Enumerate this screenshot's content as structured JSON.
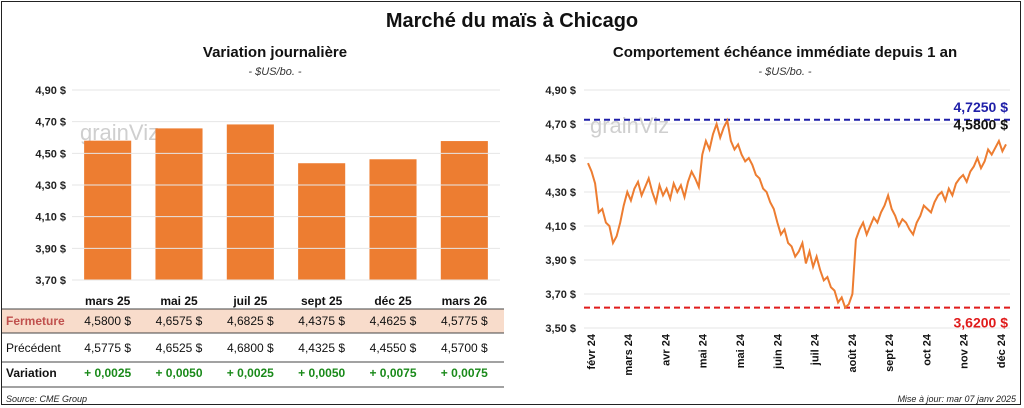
{
  "title": "Marché du maïs à Chicago",
  "watermark": "grainViz",
  "source": "Source: CME Group",
  "updated": "Mise à jour: mar 07 janv 2025",
  "colors": {
    "bar": "#ED7D31",
    "line": "#ED7D31",
    "high": "#1F1FA8",
    "low": "#E01B1B",
    "positive": "#1A8A1A",
    "row_highlight": "#F8DCCB",
    "label": "#C0504D"
  },
  "chart_data": [
    {
      "type": "bar",
      "title": "Variation journalière",
      "subtitle": "- $US/bo. -",
      "categories": [
        "mars 25",
        "mai 25",
        "juil 25",
        "sept 25",
        "déc 25",
        "mars 26"
      ],
      "values": [
        4.58,
        4.6575,
        4.6825,
        4.4375,
        4.4625,
        4.5775
      ],
      "ylim": [
        3.7,
        4.9
      ],
      "yticks": [
        "3,70 $",
        "3,90 $",
        "4,10 $",
        "4,30 $",
        "4,50 $",
        "4,70 $",
        "4,90 $"
      ],
      "grid": true,
      "table": {
        "rows": [
          {
            "label": "Fermeture",
            "values": [
              "4,5800 $",
              "4,6575 $",
              "4,6825 $",
              "4,4375 $",
              "4,4625 $",
              "4,5775 $"
            ]
          },
          {
            "label": "Précédent",
            "values": [
              "4,5775 $",
              "4,6525 $",
              "4,6800 $",
              "4,4325 $",
              "4,4550 $",
              "4,5700 $"
            ]
          },
          {
            "label": "Variation",
            "values": [
              "+ 0,0025",
              "+ 0,0050",
              "+ 0,0025",
              "+ 0,0050",
              "+ 0,0075",
              "+ 0,0075"
            ]
          }
        ]
      }
    },
    {
      "type": "line",
      "title": "Comportement échéance immédiate depuis 1 an",
      "subtitle": "- $US/bo. -",
      "xlabels": [
        "févr 24",
        "mars 24",
        "avr 24",
        "mai 24",
        "mai 24",
        "juin 24",
        "juil 24",
        "août 24",
        "sept 24",
        "oct 24",
        "nov 24",
        "déc 24"
      ],
      "ylim": [
        3.5,
        4.9
      ],
      "yticks": [
        "3,50 $",
        "3,70 $",
        "3,90 $",
        "4,10 $",
        "4,30 $",
        "4,50 $",
        "4,70 $",
        "4,90 $"
      ],
      "grid": true,
      "values": [
        4.47,
        4.42,
        4.35,
        4.18,
        4.2,
        4.12,
        4.1,
        4.0,
        4.04,
        4.12,
        4.22,
        4.3,
        4.25,
        4.32,
        4.36,
        4.28,
        4.33,
        4.38,
        4.3,
        4.24,
        4.34,
        4.28,
        4.32,
        4.26,
        4.35,
        4.3,
        4.34,
        4.27,
        4.36,
        4.42,
        4.38,
        4.33,
        4.52,
        4.6,
        4.55,
        4.64,
        4.7,
        4.62,
        4.68,
        4.72,
        4.6,
        4.55,
        4.58,
        4.52,
        4.48,
        4.5,
        4.46,
        4.4,
        4.38,
        4.32,
        4.3,
        4.24,
        4.2,
        4.12,
        4.05,
        4.08,
        4.0,
        3.98,
        3.92,
        3.95,
        4.0,
        3.88,
        3.95,
        3.86,
        3.92,
        3.84,
        3.78,
        3.8,
        3.74,
        3.72,
        3.65,
        3.68,
        3.62,
        3.64,
        3.7,
        4.02,
        4.08,
        4.12,
        4.05,
        4.1,
        4.15,
        4.12,
        4.18,
        4.22,
        4.28,
        4.2,
        4.16,
        4.1,
        4.14,
        4.12,
        4.08,
        4.05,
        4.12,
        4.16,
        4.22,
        4.2,
        4.18,
        4.24,
        4.28,
        4.3,
        4.25,
        4.32,
        4.28,
        4.35,
        4.38,
        4.4,
        4.36,
        4.42,
        4.45,
        4.5,
        4.44,
        4.48,
        4.55,
        4.52,
        4.56,
        4.6,
        4.54,
        4.58
      ],
      "reference_lines": [
        {
          "label": "4,7250 $",
          "value": 4.725
        },
        {
          "label": "3,6200 $",
          "value": 3.62
        }
      ],
      "last_label": "4,5800 $"
    }
  ]
}
